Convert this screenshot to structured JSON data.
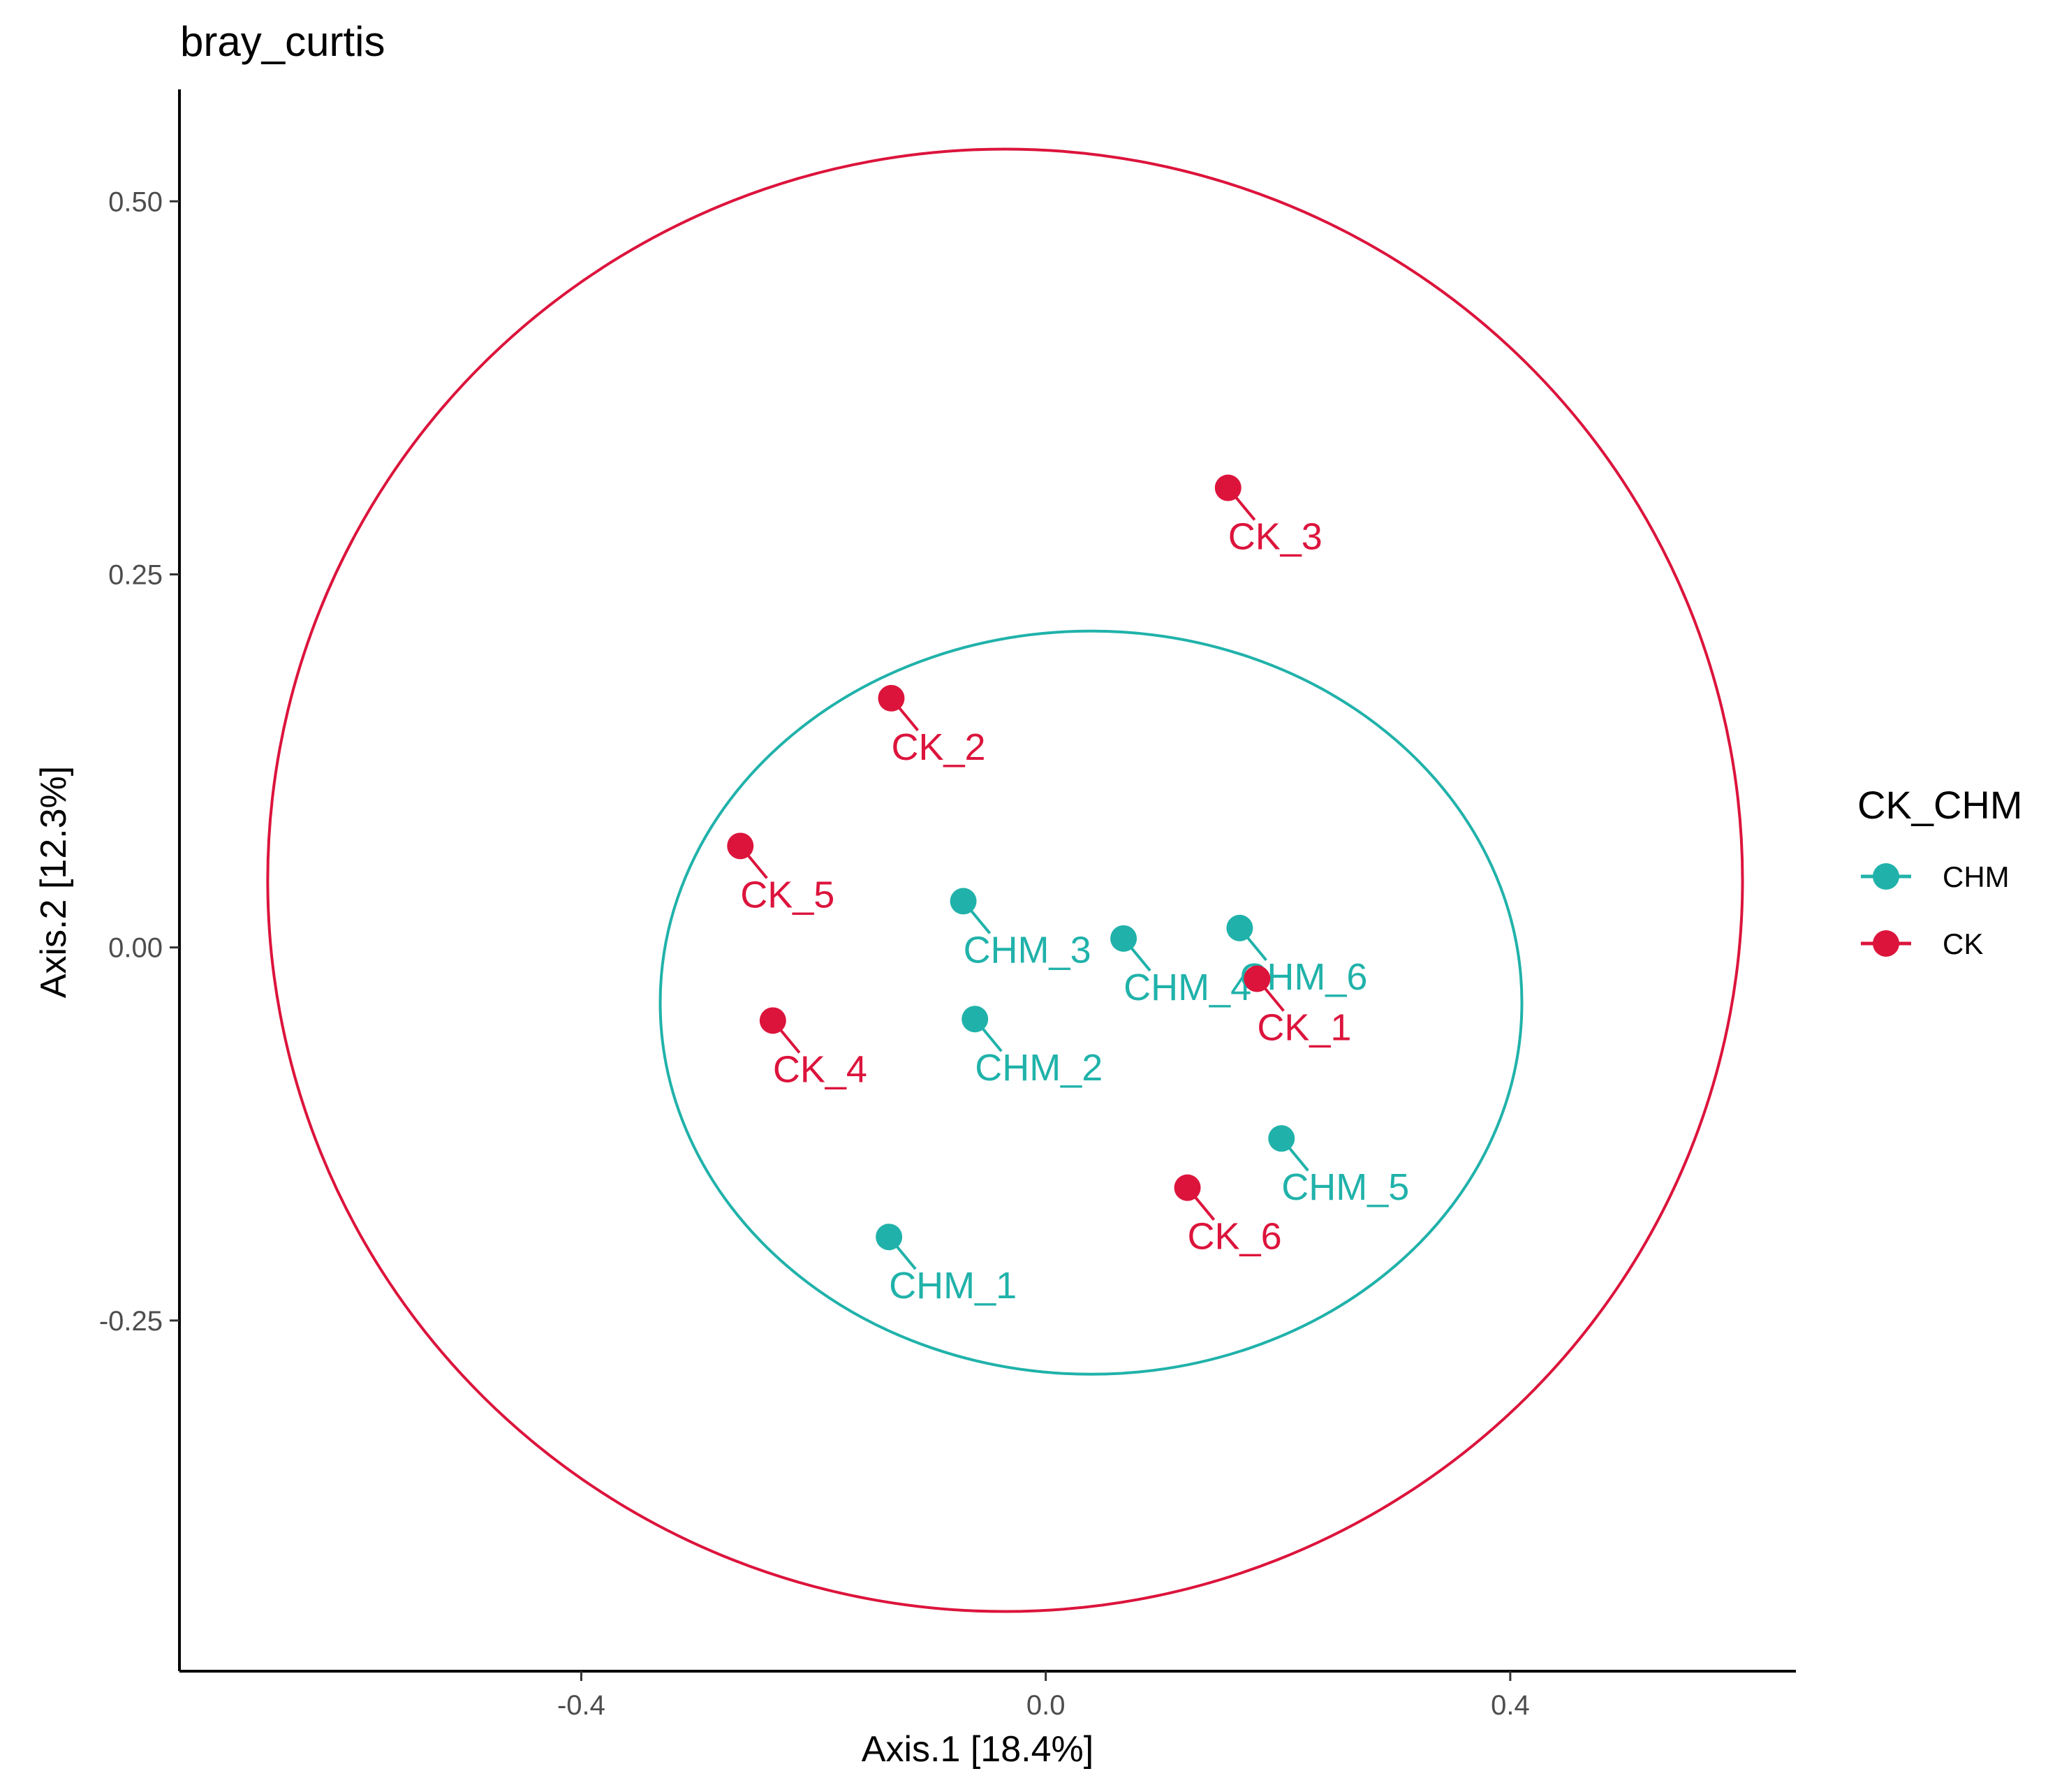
{
  "chart_data": {
    "type": "scatter",
    "title": "bray_curtis",
    "xlabel": "Axis.1 [18.4%]",
    "ylabel": "Axis.2 [12.3%]",
    "xlim": [
      -0.746,
      0.646
    ],
    "ylim": [
      -0.485,
      0.575
    ],
    "x_ticks": [
      -0.4,
      0.0,
      0.4
    ],
    "x_tick_labels": [
      "-0.4",
      "0.0",
      "0.4"
    ],
    "y_ticks": [
      -0.25,
      0.0,
      0.25,
      0.5
    ],
    "y_tick_labels": [
      "-0.25",
      "0.00",
      "0.25",
      "0.50"
    ],
    "grid": false,
    "legend": {
      "title": "CK_CHM",
      "position": "right",
      "entries": [
        {
          "label": "CHM",
          "color": "#20b2aa"
        },
        {
          "label": "CK",
          "color": "#dc143c"
        }
      ]
    },
    "series": [
      {
        "name": "CHM",
        "color": "#20b2aa",
        "points": [
          {
            "label": "CHM_1",
            "x": -0.135,
            "y": -0.194
          },
          {
            "label": "CHM_2",
            "x": -0.061,
            "y": -0.048
          },
          {
            "label": "CHM_3",
            "x": -0.071,
            "y": 0.031
          },
          {
            "label": "CHM_4",
            "x": 0.067,
            "y": 0.006
          },
          {
            "label": "CHM_5",
            "x": 0.203,
            "y": -0.128
          },
          {
            "label": "CHM_6",
            "x": 0.167,
            "y": 0.013
          }
        ],
        "ellipse": {
          "center": [
            0.039,
            -0.037
          ],
          "radius_x": 0.371,
          "radius_y": 0.249
        }
      },
      {
        "name": "CK",
        "color": "#dc143c",
        "points": [
          {
            "label": "CK_1",
            "x": 0.182,
            "y": -0.021
          },
          {
            "label": "CK_2",
            "x": -0.133,
            "y": 0.167
          },
          {
            "label": "CK_3",
            "x": 0.157,
            "y": 0.308
          },
          {
            "label": "CK_4",
            "x": -0.235,
            "y": -0.049
          },
          {
            "label": "CK_5",
            "x": -0.263,
            "y": 0.068
          },
          {
            "label": "CK_6",
            "x": 0.122,
            "y": -0.161
          }
        ],
        "ellipse": {
          "center": [
            -0.035,
            0.045
          ],
          "radius_x": 0.635,
          "radius_y": 0.49
        }
      }
    ]
  }
}
